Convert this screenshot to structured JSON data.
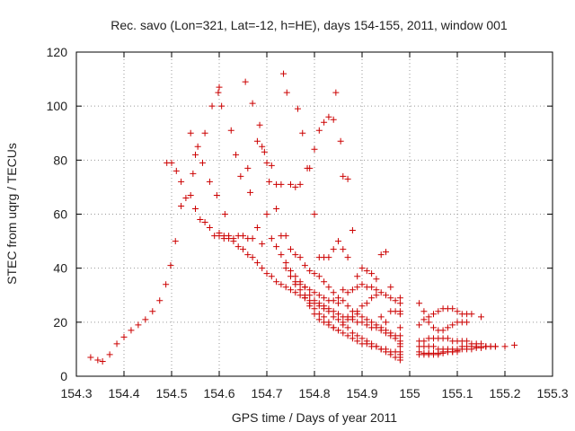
{
  "chart_data": {
    "type": "scatter",
    "title": "Rec. savo (Lon=321, Lat=-12, h=HE), days 154-155, 2011, window 001",
    "xlabel": "GPS time / Days of year 2011",
    "ylabel": "STEC from uqrg / TECUs",
    "xlim": [
      154.3,
      155.3
    ],
    "ylim": [
      0,
      120
    ],
    "xticks": [
      "154.3",
      "154.4",
      "154.5",
      "154.6",
      "154.7",
      "154.8",
      "154.9",
      "155",
      "155.1",
      "155.2",
      "155.3"
    ],
    "yticks": [
      "0",
      "20",
      "40",
      "60",
      "80",
      "100",
      "120"
    ],
    "grid": true,
    "marker": "plus",
    "color": "#cc0000",
    "points": [
      [
        154.33,
        7
      ],
      [
        154.345,
        6
      ],
      [
        154.355,
        5.5
      ],
      [
        154.37,
        8
      ],
      [
        154.385,
        12
      ],
      [
        154.4,
        14.5
      ],
      [
        154.415,
        17
      ],
      [
        154.43,
        19
      ],
      [
        154.445,
        21
      ],
      [
        154.46,
        24
      ],
      [
        154.475,
        28
      ],
      [
        154.488,
        34
      ],
      [
        154.498,
        41
      ],
      [
        154.508,
        50
      ],
      [
        154.49,
        79
      ],
      [
        154.5,
        79
      ],
      [
        154.51,
        76
      ],
      [
        154.52,
        72
      ],
      [
        154.54,
        90
      ],
      [
        154.545,
        75
      ],
      [
        154.55,
        82
      ],
      [
        154.555,
        85
      ],
      [
        154.565,
        79
      ],
      [
        154.57,
        90
      ],
      [
        154.58,
        72
      ],
      [
        154.585,
        100
      ],
      [
        154.595,
        67
      ],
      [
        154.598,
        105
      ],
      [
        154.6,
        107
      ],
      [
        154.605,
        100
      ],
      [
        154.612,
        60
      ],
      [
        154.625,
        91
      ],
      [
        154.635,
        82
      ],
      [
        154.645,
        74
      ],
      [
        154.655,
        109
      ],
      [
        154.66,
        77
      ],
      [
        154.665,
        68
      ],
      [
        154.67,
        101
      ],
      [
        154.68,
        87
      ],
      [
        154.685,
        93
      ],
      [
        154.69,
        85
      ],
      [
        154.695,
        83
      ],
      [
        154.7,
        79
      ],
      [
        154.705,
        72
      ],
      [
        154.71,
        78
      ],
      [
        154.72,
        71
      ],
      [
        154.73,
        71
      ],
      [
        154.735,
        112
      ],
      [
        154.742,
        105
      ],
      [
        154.75,
        71
      ],
      [
        154.76,
        70
      ],
      [
        154.765,
        99
      ],
      [
        154.77,
        71
      ],
      [
        154.775,
        90
      ],
      [
        154.785,
        77
      ],
      [
        154.79,
        77
      ],
      [
        154.8,
        84
      ],
      [
        154.81,
        91
      ],
      [
        154.82,
        94
      ],
      [
        154.83,
        96
      ],
      [
        154.84,
        95
      ],
      [
        154.845,
        105
      ],
      [
        154.855,
        87
      ],
      [
        154.86,
        74
      ],
      [
        154.87,
        73
      ],
      [
        154.52,
        63
      ],
      [
        154.53,
        66
      ],
      [
        154.54,
        67
      ],
      [
        154.55,
        62
      ],
      [
        154.56,
        58
      ],
      [
        154.57,
        57
      ],
      [
        154.58,
        55
      ],
      [
        154.59,
        52
      ],
      [
        154.6,
        52
      ],
      [
        154.61,
        51
      ],
      [
        154.62,
        52
      ],
      [
        154.63,
        51
      ],
      [
        154.64,
        52
      ],
      [
        154.65,
        52
      ],
      [
        154.66,
        51
      ],
      [
        154.67,
        51
      ],
      [
        154.68,
        55
      ],
      [
        154.69,
        49
      ],
      [
        154.7,
        60
      ],
      [
        154.71,
        51
      ],
      [
        154.72,
        62
      ],
      [
        154.73,
        52
      ],
      [
        154.74,
        52
      ],
      [
        154.75,
        47
      ],
      [
        154.76,
        45
      ],
      [
        154.77,
        44
      ],
      [
        154.78,
        41
      ],
      [
        154.79,
        39
      ],
      [
        154.8,
        60
      ],
      [
        154.81,
        44
      ],
      [
        154.82,
        44
      ],
      [
        154.83,
        44
      ],
      [
        154.84,
        47
      ],
      [
        154.85,
        50
      ],
      [
        154.86,
        47
      ],
      [
        154.87,
        44
      ],
      [
        154.88,
        54
      ],
      [
        154.89,
        37
      ],
      [
        154.9,
        40
      ],
      [
        154.91,
        39
      ],
      [
        154.92,
        38
      ],
      [
        154.93,
        36
      ],
      [
        154.94,
        45
      ],
      [
        154.95,
        46
      ],
      [
        154.96,
        33
      ],
      [
        154.6,
        53
      ],
      [
        154.61,
        52
      ],
      [
        154.62,
        51
      ],
      [
        154.63,
        50
      ],
      [
        154.64,
        48
      ],
      [
        154.65,
        47
      ],
      [
        154.66,
        45
      ],
      [
        154.67,
        44
      ],
      [
        154.68,
        42
      ],
      [
        154.69,
        40
      ],
      [
        154.7,
        38
      ],
      [
        154.71,
        37
      ],
      [
        154.72,
        35
      ],
      [
        154.73,
        34
      ],
      [
        154.74,
        33
      ],
      [
        154.75,
        32
      ],
      [
        154.76,
        31
      ],
      [
        154.77,
        30
      ],
      [
        154.78,
        29
      ],
      [
        154.79,
        28
      ],
      [
        154.8,
        27
      ],
      [
        154.81,
        27
      ],
      [
        154.82,
        26
      ],
      [
        154.83,
        25
      ],
      [
        154.84,
        24
      ],
      [
        154.85,
        23
      ],
      [
        154.86,
        22
      ],
      [
        154.87,
        22
      ],
      [
        154.88,
        21
      ],
      [
        154.89,
        20
      ],
      [
        154.9,
        20
      ],
      [
        154.91,
        19
      ],
      [
        154.92,
        18
      ],
      [
        154.93,
        18
      ],
      [
        154.94,
        17
      ],
      [
        154.95,
        17
      ],
      [
        154.96,
        16
      ],
      [
        154.97,
        15
      ],
      [
        154.98,
        15
      ],
      [
        154.72,
        48
      ],
      [
        154.73,
        45
      ],
      [
        154.74,
        42
      ],
      [
        154.75,
        39
      ],
      [
        154.76,
        37
      ],
      [
        154.77,
        35
      ],
      [
        154.78,
        33
      ],
      [
        154.79,
        32
      ],
      [
        154.8,
        31
      ],
      [
        154.81,
        30
      ],
      [
        154.82,
        29
      ],
      [
        154.83,
        28
      ],
      [
        154.84,
        28
      ],
      [
        154.85,
        27
      ],
      [
        154.86,
        32
      ],
      [
        154.87,
        31
      ],
      [
        154.88,
        32
      ],
      [
        154.89,
        33
      ],
      [
        154.9,
        34
      ],
      [
        154.91,
        33
      ],
      [
        154.92,
        33
      ],
      [
        154.93,
        32
      ],
      [
        154.94,
        31
      ],
      [
        154.95,
        30
      ],
      [
        154.96,
        29
      ],
      [
        154.97,
        28
      ],
      [
        154.98,
        27
      ],
      [
        154.74,
        40
      ],
      [
        154.75,
        37
      ],
      [
        154.76,
        35
      ],
      [
        154.77,
        34
      ],
      [
        154.78,
        33
      ],
      [
        154.79,
        30
      ],
      [
        154.8,
        28
      ],
      [
        154.81,
        26
      ],
      [
        154.82,
        25
      ],
      [
        154.83,
        24
      ],
      [
        154.84,
        22
      ],
      [
        154.85,
        21
      ],
      [
        154.86,
        19
      ],
      [
        154.87,
        18
      ],
      [
        154.88,
        16
      ],
      [
        154.89,
        15
      ],
      [
        154.9,
        14
      ],
      [
        154.91,
        13
      ],
      [
        154.92,
        12
      ],
      [
        154.93,
        11
      ],
      [
        154.94,
        10
      ],
      [
        154.95,
        9
      ],
      [
        154.96,
        8
      ],
      [
        154.97,
        7
      ],
      [
        154.98,
        6
      ],
      [
        154.76,
        34
      ],
      [
        154.77,
        32
      ],
      [
        154.78,
        29
      ],
      [
        154.79,
        27
      ],
      [
        154.8,
        25
      ],
      [
        154.81,
        23
      ],
      [
        154.82,
        22
      ],
      [
        154.83,
        20
      ],
      [
        154.84,
        18
      ],
      [
        154.85,
        17
      ],
      [
        154.86,
        16
      ],
      [
        154.87,
        15
      ],
      [
        154.88,
        14
      ],
      [
        154.89,
        13
      ],
      [
        154.9,
        12
      ],
      [
        154.91,
        12
      ],
      [
        154.92,
        11
      ],
      [
        154.93,
        11
      ],
      [
        154.94,
        10
      ],
      [
        154.95,
        10
      ],
      [
        154.96,
        9
      ],
      [
        154.97,
        9
      ],
      [
        154.98,
        8
      ],
      [
        154.78,
        30
      ],
      [
        154.79,
        26
      ],
      [
        154.8,
        23
      ],
      [
        154.81,
        21
      ],
      [
        154.82,
        20
      ],
      [
        154.83,
        19
      ],
      [
        154.84,
        18
      ],
      [
        154.85,
        17
      ],
      [
        154.86,
        20
      ],
      [
        154.87,
        21
      ],
      [
        154.88,
        22
      ],
      [
        154.89,
        24
      ],
      [
        154.9,
        26
      ],
      [
        154.91,
        27
      ],
      [
        154.92,
        29
      ],
      [
        154.93,
        30
      ],
      [
        154.94,
        22
      ],
      [
        154.95,
        20
      ],
      [
        154.96,
        24
      ],
      [
        154.97,
        24
      ],
      [
        154.98,
        23
      ],
      [
        154.8,
        38
      ],
      [
        154.81,
        37
      ],
      [
        154.82,
        35
      ],
      [
        154.83,
        33
      ],
      [
        154.84,
        31
      ],
      [
        154.85,
        29
      ],
      [
        154.86,
        28
      ],
      [
        154.87,
        26
      ],
      [
        154.88,
        24
      ],
      [
        154.89,
        23
      ],
      [
        154.9,
        22
      ],
      [
        154.91,
        21
      ],
      [
        154.92,
        20
      ],
      [
        154.93,
        19
      ],
      [
        154.94,
        18
      ],
      [
        154.95,
        16
      ],
      [
        154.96,
        15
      ],
      [
        154.97,
        14
      ],
      [
        154.98,
        12
      ],
      [
        155.02,
        27
      ],
      [
        155.02,
        19
      ],
      [
        155.03,
        21
      ],
      [
        155.04,
        22
      ],
      [
        155.05,
        23
      ],
      [
        155.06,
        24
      ],
      [
        155.07,
        25
      ],
      [
        155.08,
        25
      ],
      [
        155.09,
        25
      ],
      [
        155.1,
        24
      ],
      [
        155.11,
        23
      ],
      [
        155.12,
        23
      ],
      [
        155.13,
        23
      ],
      [
        155.15,
        22
      ],
      [
        155.03,
        24
      ],
      [
        155.04,
        20
      ],
      [
        155.05,
        18
      ],
      [
        155.06,
        17
      ],
      [
        155.07,
        17
      ],
      [
        155.08,
        18
      ],
      [
        155.09,
        19
      ],
      [
        155.1,
        20
      ],
      [
        155.11,
        20
      ],
      [
        155.12,
        20
      ],
      [
        155.02,
        13
      ],
      [
        155.03,
        13
      ],
      [
        155.04,
        14
      ],
      [
        155.05,
        14
      ],
      [
        155.06,
        14
      ],
      [
        155.07,
        14
      ],
      [
        155.08,
        14
      ],
      [
        155.09,
        13
      ],
      [
        155.1,
        13
      ],
      [
        155.11,
        13
      ],
      [
        155.12,
        13
      ],
      [
        155.13,
        12
      ],
      [
        155.14,
        12
      ],
      [
        155.15,
        12
      ],
      [
        155.16,
        11
      ],
      [
        155.17,
        11
      ],
      [
        155.18,
        11
      ],
      [
        155.02,
        11
      ],
      [
        155.03,
        11
      ],
      [
        155.04,
        11
      ],
      [
        155.05,
        11
      ],
      [
        155.06,
        10
      ],
      [
        155.07,
        10
      ],
      [
        155.08,
        10
      ],
      [
        155.09,
        10
      ],
      [
        155.1,
        10
      ],
      [
        155.11,
        11
      ],
      [
        155.12,
        11
      ],
      [
        155.13,
        11
      ],
      [
        155.14,
        11
      ],
      [
        155.15,
        11
      ],
      [
        155.16,
        11
      ],
      [
        155.17,
        11
      ],
      [
        155.18,
        11
      ],
      [
        155.2,
        11
      ],
      [
        155.22,
        11.5
      ],
      [
        155.02,
        9
      ],
      [
        155.03,
        8.5
      ],
      [
        155.04,
        8.5
      ],
      [
        155.05,
        8.5
      ],
      [
        155.06,
        8.5
      ],
      [
        155.07,
        9
      ],
      [
        155.08,
        9
      ],
      [
        155.09,
        9
      ],
      [
        155.1,
        9.5
      ],
      [
        155.11,
        10
      ],
      [
        155.12,
        10
      ],
      [
        155.13,
        10
      ],
      [
        155.14,
        10.5
      ],
      [
        155.15,
        10.5
      ],
      [
        155.16,
        11
      ],
      [
        155.02,
        8
      ],
      [
        155.03,
        8
      ],
      [
        155.04,
        8
      ],
      [
        155.05,
        8
      ],
      [
        155.06,
        8
      ],
      [
        155.07,
        8.5
      ],
      [
        155.08,
        9
      ],
      [
        155.09,
        9
      ],
      [
        155.1,
        9
      ],
      [
        154.98,
        7
      ],
      [
        154.98,
        9
      ],
      [
        154.98,
        11
      ],
      [
        154.98,
        13
      ],
      [
        154.98,
        18
      ],
      [
        154.98,
        24
      ],
      [
        154.98,
        29
      ]
    ]
  }
}
